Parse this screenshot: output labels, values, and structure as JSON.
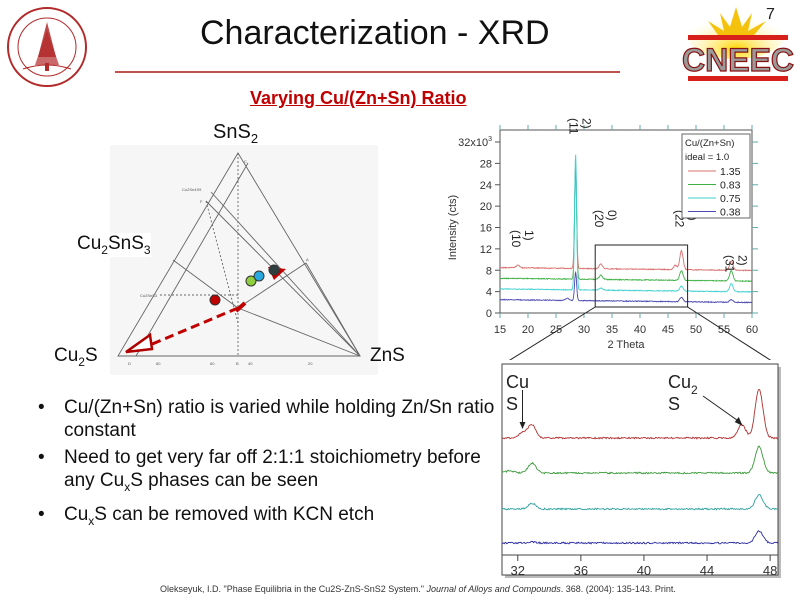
{
  "slide": {
    "title": "Characterization - XRD",
    "subtitle": "Varying Cu/(Zn+Sn) Ratio",
    "slide_number": "7",
    "accent_color": "#c0504d"
  },
  "logos": {
    "left_seal_text": "LELAND STANFORD JUNIOR UNIVERSITY 1891",
    "right_logo_text": "CNEEC"
  },
  "ternary": {
    "top_label": "SnS",
    "top_sub": "2",
    "mid_label_a": "Cu",
    "mid_label_sub1": "2",
    "mid_label_b": "SnS",
    "mid_label_sub2": "3",
    "left_label": "Cu",
    "left_sub": "2",
    "left_tail": "S",
    "right_label": "ZnS",
    "point_colors": [
      "#c00000",
      "#8fce3e",
      "#29a8e0",
      "#2f3f3f"
    ]
  },
  "bullets": [
    {
      "text": "Cu/(Zn+Sn) ratio is varied while holding Zn/Sn ratio constant"
    },
    {
      "pre": "Need to get very far off 2:1:1 stoichiometry before any Cu",
      "sub": "x",
      "post": "S phases can be seen"
    },
    {
      "pre": "Cu",
      "sub": "x",
      "post": "S can be removed with KCN etch"
    }
  ],
  "citation": {
    "pre": "Olekseyuk, I.D. \"Phase Equilibria in the Cu2S-ZnS-SnS2 System.\" ",
    "journal": "Journal of Alloys and Compounds",
    "post": ". 368. (2004): 135-143. Print."
  },
  "chart_data": [
    {
      "type": "line",
      "title": "",
      "xlabel": "2 Theta",
      "ylabel": "Intensity (cts)",
      "xlim": [
        15,
        60
      ],
      "ylim": [
        0,
        32000
      ],
      "x_ticks": [
        "15",
        "20",
        "25",
        "30",
        "35",
        "40",
        "45",
        "50",
        "55",
        "60"
      ],
      "y_ticks": [
        "0",
        "4",
        "8",
        "12",
        "16",
        "20",
        "24",
        "28",
        "32x10"
      ],
      "y_tick_exp": "3",
      "legend": {
        "title_line1": "Cu/(Zn+Sn)",
        "title_line2": "ideal = 1.0",
        "placement": "top-right"
      },
      "peak_labels": [
        {
          "line1": "(10",
          "line2": "1)",
          "x": 18.2
        },
        {
          "line1": "(11",
          "line2": "2)",
          "x": 28.5
        },
        {
          "line1": "(20",
          "line2": "0)",
          "x": 33.0
        },
        {
          "line1": "(22",
          "line2": "0)",
          "x": 47.4
        },
        {
          "line1": "(31",
          "line2": "2)",
          "x": 56.3
        }
      ],
      "zoom_box_x": [
        32,
        48.5
      ],
      "series": [
        {
          "name": "1.35",
          "color": "#d9706e",
          "baseline": 8500,
          "peaks": [
            [
              18.2,
              500
            ],
            [
              28.5,
              19500
            ],
            [
              33.0,
              900
            ],
            [
              46.3,
              800
            ],
            [
              47.4,
              3500
            ],
            [
              56.3,
              1700
            ]
          ]
        },
        {
          "name": "0.83",
          "color": "#3cb043",
          "baseline": 6500,
          "peaks": [
            [
              28.5,
              21000
            ],
            [
              33.0,
              800
            ],
            [
              47.4,
              1800
            ],
            [
              56.3,
              1900
            ]
          ]
        },
        {
          "name": "0.75",
          "color": "#40d0d0",
          "baseline": 4500,
          "peaks": [
            [
              28.5,
              25500
            ],
            [
              33.0,
              400
            ],
            [
              47.4,
              900
            ],
            [
              56.3,
              1500
            ]
          ]
        },
        {
          "name": "0.38",
          "color": "#4a4ab0",
          "baseline": 2500,
          "peaks": [
            [
              27.0,
              400
            ],
            [
              28.5,
              5300
            ],
            [
              47.4,
              800
            ],
            [
              56.3,
              500
            ]
          ]
        }
      ]
    },
    {
      "type": "line",
      "title": "",
      "xlim": [
        31,
        48.5
      ],
      "x_ticks": [
        "32",
        "36",
        "40",
        "44",
        "48"
      ],
      "annotations": [
        {
          "line1": "Cu",
          "line2": "S",
          "x": 32.3
        },
        {
          "line1": "Cu",
          "sub": "2",
          "line2": "S",
          "x": 46.2
        }
      ],
      "series": [
        {
          "name": "1.35",
          "color": "#b03030",
          "peaks": [
            [
              32.3,
              0.25
            ],
            [
              32.9,
              0.6
            ],
            [
              46.2,
              0.6
            ],
            [
              47.3,
              2.2
            ]
          ]
        },
        {
          "name": "0.83",
          "color": "#3a9a3a",
          "peaks": [
            [
              31.5,
              0.1
            ],
            [
              32.9,
              0.45
            ],
            [
              47.3,
              1.2
            ]
          ]
        },
        {
          "name": "0.75",
          "color": "#30a0a0",
          "peaks": [
            [
              32.9,
              0.25
            ],
            [
              47.3,
              0.65
            ]
          ]
        },
        {
          "name": "0.38",
          "color": "#2a2aa0",
          "peaks": [
            [
              32.9,
              0.05
            ],
            [
              47.3,
              0.55
            ]
          ]
        }
      ]
    }
  ]
}
